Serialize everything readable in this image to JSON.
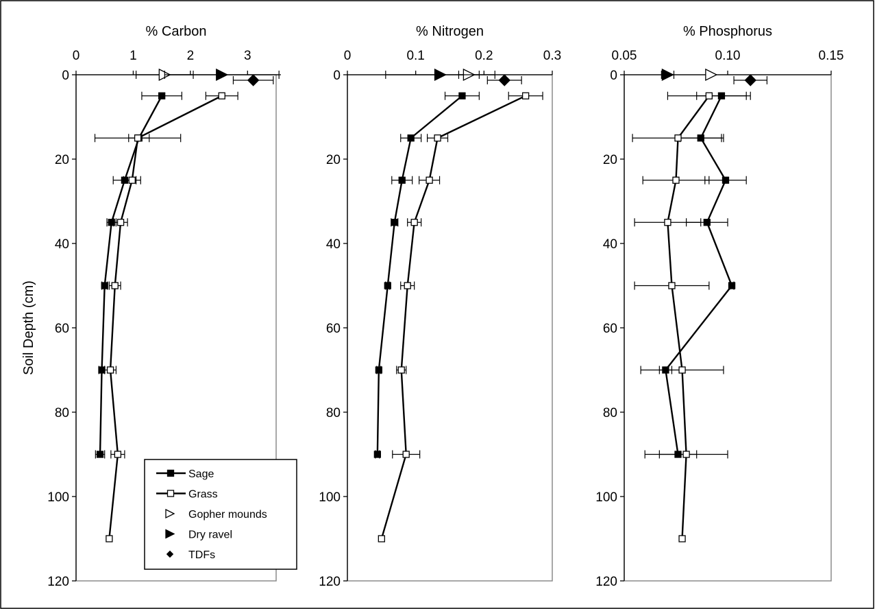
{
  "chart_data": {
    "type": "line",
    "orientation": "depth-profile",
    "ylabel": "Soil Depth (cm)",
    "y_axis": {
      "ylim": [
        0,
        120
      ],
      "ticks": [
        0,
        20,
        40,
        60,
        80,
        100,
        120
      ],
      "inverted": true
    },
    "grid": false,
    "legend": {
      "placement": "bottom-left-inside",
      "entries": [
        "Sage",
        "Grass",
        "Gopher mounds",
        "Dry ravel",
        "TDFs"
      ]
    },
    "series_styles": {
      "Sage": "filled-square",
      "Grass": "open-square",
      "Gopher mounds": "open-triangle",
      "Dry ravel": "filled-triangle",
      "TDFs": "filled-diamond"
    },
    "panels": [
      {
        "xlabel": "% Carbon",
        "xlim": [
          0,
          3.5
        ],
        "xticks": [
          0,
          1,
          2,
          3
        ],
        "xtick_labels": [
          "0",
          "1",
          "2",
          "3"
        ],
        "series": [
          {
            "name": "Sage",
            "depths": [
              5,
              15,
              25,
              35,
              50,
              70,
              90
            ],
            "values": [
              1.5,
              1.1,
              0.85,
              0.62,
              0.5,
              0.45,
              0.42
            ],
            "errors": [
              0.35,
              0.18,
              0.2,
              0.08,
              0.05,
              0.05,
              0.08
            ]
          },
          {
            "name": "Grass",
            "depths": [
              5,
              15,
              25,
              35,
              50,
              70,
              90,
              110
            ],
            "values": [
              2.55,
              1.08,
              0.98,
              0.78,
              0.68,
              0.6,
              0.73,
              0.58
            ],
            "errors": [
              0.28,
              0.75,
              0.15,
              0.12,
              0.1,
              0.1,
              0.12,
              0
            ]
          },
          {
            "name": "Gopher mounds",
            "depths": [
              0
            ],
            "values": [
              1.55
            ],
            "errors": [
              0.5
            ]
          },
          {
            "name": "Dry ravel",
            "depths": [
              0
            ],
            "values": [
              2.55
            ],
            "errors": [
              1.0
            ]
          },
          {
            "name": "TDFs",
            "depths": [
              1.3
            ],
            "values": [
              3.1
            ],
            "errors": [
              0.35
            ]
          }
        ]
      },
      {
        "xlabel": "% Nitrogen",
        "xlim": [
          0,
          0.3
        ],
        "xticks": [
          0,
          0.1,
          0.2,
          0.3
        ],
        "xtick_labels": [
          "0",
          "0.1",
          "0.2",
          "0.3"
        ],
        "series": [
          {
            "name": "Sage",
            "depths": [
              5,
              15,
              25,
              35,
              50,
              70,
              90
            ],
            "values": [
              0.168,
              0.093,
              0.08,
              0.069,
              0.059,
              0.046,
              0.044
            ],
            "errors": [
              0.025,
              0.015,
              0.015,
              0.005,
              0.003,
              0.003,
              0.003
            ]
          },
          {
            "name": "Grass",
            "depths": [
              5,
              15,
              25,
              35,
              50,
              70,
              90,
              110
            ],
            "values": [
              0.261,
              0.132,
              0.12,
              0.098,
              0.088,
              0.079,
              0.086,
              0.05
            ],
            "errors": [
              0.025,
              0.015,
              0.015,
              0.01,
              0.01,
              0.007,
              0.02,
              0
            ]
          },
          {
            "name": "Gopher mounds",
            "depths": [
              0
            ],
            "values": [
              0.178
            ],
            "errors": [
              0.015
            ]
          },
          {
            "name": "Dry ravel",
            "depths": [
              0
            ],
            "values": [
              0.136
            ],
            "errors": [
              0.08
            ]
          },
          {
            "name": "TDFs",
            "depths": [
              1.3
            ],
            "values": [
              0.23
            ],
            "errors": [
              0.025
            ]
          }
        ]
      },
      {
        "xlabel": "% Phosphorus",
        "xlim": [
          0.05,
          0.15
        ],
        "xticks": [
          0.05,
          0.1,
          0.15
        ],
        "xtick_labels": [
          "0.05",
          "0.10",
          "0.15"
        ],
        "series": [
          {
            "name": "Sage",
            "depths": [
              5,
              15,
              25,
              35,
              50,
              70,
              90
            ],
            "values": [
              0.097,
              0.087,
              0.099,
              0.09,
              0.102,
              0.07,
              0.076
            ],
            "errors": [
              0.012,
              0.01,
              0.01,
              0.01,
              0.001,
              0.003,
              0.009
            ]
          },
          {
            "name": "Grass",
            "depths": [
              5,
              15,
              25,
              35,
              50,
              70,
              90,
              110
            ],
            "values": [
              0.091,
              0.076,
              0.075,
              0.071,
              0.073,
              0.078,
              0.08,
              0.078
            ],
            "errors": [
              0.02,
              0.022,
              0.016,
              0.016,
              0.018,
              0.02,
              0.02,
              0
            ]
          },
          {
            "name": "Gopher mounds",
            "depths": [
              0
            ],
            "values": [
              0.092
            ],
            "errors": [
              0
            ]
          },
          {
            "name": "Dry ravel",
            "depths": [
              0
            ],
            "values": [
              0.071
            ],
            "errors": [
              0.003
            ]
          },
          {
            "name": "TDFs",
            "depths": [
              1.3
            ],
            "values": [
              0.111
            ],
            "errors": [
              0.008
            ]
          }
        ]
      }
    ]
  }
}
